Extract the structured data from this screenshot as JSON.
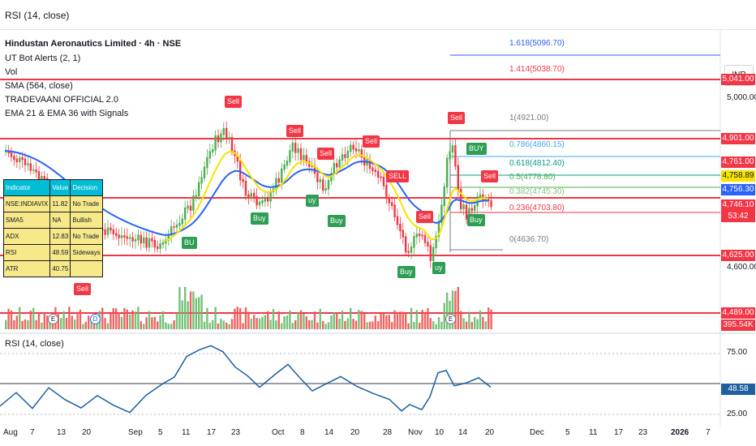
{
  "topbar": {
    "indicator_label": "RSI (14, close)"
  },
  "chart": {
    "symbol_line": "Hindustan Aeronautics Limited · 4h · NSE",
    "legends": [
      "UT Bot Alerts (2, 1)",
      "Vol",
      "SMA (564, close)",
      "TRADEVAANI OFFICIAL 2.0",
      "EMA 21 & EMA 36 with Signals"
    ],
    "currency": "INR",
    "price_tags": [
      {
        "label": "5,041.00",
        "color": "#f23645"
      },
      {
        "label": "4,901.00",
        "color": "#f23645"
      },
      {
        "label": "4,761.00",
        "color": "#f23645"
      },
      {
        "label": "4,758.89",
        "color": "#f7e300"
      },
      {
        "label": "4,756.30",
        "color": "#2962ff"
      },
      {
        "label": "4,746.10",
        "color": "#f23645"
      },
      {
        "label": "53:42",
        "color": "#f23645"
      },
      {
        "label": "4,625.00",
        "color": "#f23645"
      },
      {
        "label": "4,489.00",
        "color": "#f23645"
      },
      {
        "label": "395.54K",
        "color": "#f23645"
      }
    ],
    "axis_labels": [
      "5,000.00",
      "4,600.00"
    ],
    "fib_levels": [
      {
        "label": "1.618(5096.70)",
        "color": "#2962ff"
      },
      {
        "label": "1.414(5038.70)",
        "color": "#f23645"
      },
      {
        "label": "1(4921.00)",
        "color": "#787b86"
      },
      {
        "label": "0.786(4860.15)",
        "color": "#42a5f5"
      },
      {
        "label": "0.618(4812.40)",
        "color": "#089981"
      },
      {
        "label": "0.5(4778.80)",
        "color": "#4caf50"
      },
      {
        "label": "0.382(4745.30)",
        "color": "#81c784"
      },
      {
        "label": "0.236(4703.80)",
        "color": "#f23645"
      },
      {
        "label": "0(4636.70)",
        "color": "#787b86"
      }
    ],
    "signals": {
      "sell": "Sell",
      "buy": "Buy",
      "sell_upper": "SELL",
      "buy_upper": "BUY",
      "buy_short": "BU",
      "buy_cut": "uy"
    },
    "events": [
      "E",
      "D"
    ],
    "table": {
      "headers": [
        "Indicator",
        "Value",
        "Decision"
      ],
      "rows": [
        [
          "NSE:INDIAVIX",
          "11.82",
          "No Trade"
        ],
        [
          "SMA5",
          "NA",
          "Bullish"
        ],
        [
          "ADX",
          "12.83",
          "No Trade"
        ],
        [
          "RSI",
          "48.59",
          "Sideways"
        ],
        [
          "ATR",
          "40.75",
          ""
        ]
      ]
    }
  },
  "rsi_pane": {
    "title": "RSI (14, close)",
    "value_tag": "48.58",
    "levels": [
      "75.00",
      "25.00"
    ]
  },
  "time_axis": [
    "Aug",
    "7",
    "13",
    "20",
    "Sep",
    "5",
    "11",
    "17",
    "23",
    "Oct",
    "8",
    "14",
    "20",
    "28",
    "Nov",
    "10",
    "14",
    "20",
    "Dec",
    "5",
    "11",
    "17",
    "23",
    "2026",
    "7"
  ],
  "colors": {
    "up": "#4caf50",
    "down": "#f23645",
    "ema_fast": "#f7e300",
    "ema_slow": "#2962ff",
    "rsi": "#1e5fa0"
  }
}
